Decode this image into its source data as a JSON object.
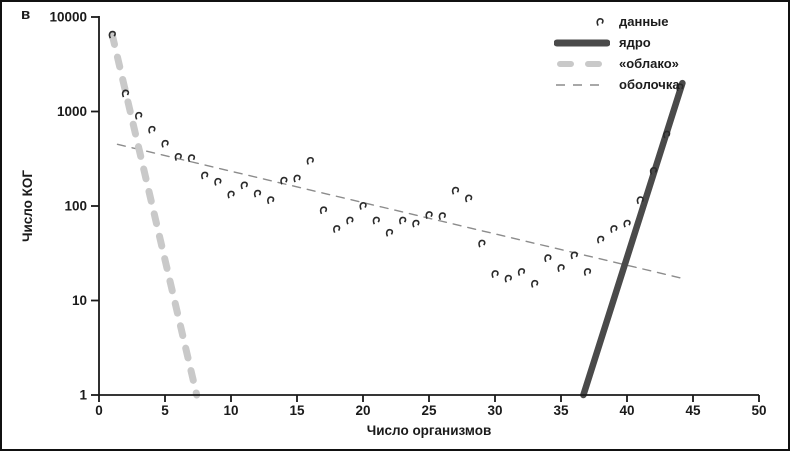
{
  "panel_label": "в",
  "chart_data": {
    "type": "scatter",
    "title": "",
    "xlabel": "Число организмов",
    "ylabel": "Число КОГ",
    "x_scale": "linear",
    "y_scale": "log",
    "xlim": [
      0,
      50
    ],
    "ylim": [
      1,
      10000
    ],
    "x_ticks": [
      0,
      5,
      10,
      15,
      20,
      25,
      30,
      35,
      40,
      45,
      50
    ],
    "y_ticks": [
      1,
      10,
      100,
      1000,
      10000
    ],
    "grid": false,
    "legend_position": "top-right",
    "axis_color": "#1a1a1a",
    "series": [
      {
        "name": "данные",
        "kind": "scatter",
        "marker": "curl",
        "color": "#2b2b2b",
        "x": [
          1,
          2,
          3,
          4,
          5,
          6,
          7,
          8,
          9,
          10,
          11,
          12,
          13,
          14,
          15,
          16,
          17,
          18,
          19,
          20,
          21,
          22,
          23,
          24,
          25,
          26,
          27,
          28,
          29,
          30,
          31,
          32,
          33,
          34,
          35,
          36,
          37,
          38,
          39,
          40,
          41,
          42,
          43,
          44
        ],
        "y": [
          6500,
          1550,
          900,
          640,
          455,
          330,
          320,
          210,
          180,
          132,
          165,
          135,
          115,
          185,
          195,
          300,
          90,
          57,
          70,
          100,
          70,
          52,
          70,
          65,
          80,
          78,
          145,
          120,
          40,
          19,
          17,
          20,
          15,
          28,
          22,
          30,
          20,
          44,
          57,
          65,
          115,
          235,
          570,
          1800
        ]
      },
      {
        "name": "ядро",
        "kind": "line",
        "style": "solid",
        "width": 6.5,
        "color": "#4a4a4a",
        "points": [
          [
            36.7,
            1
          ],
          [
            44.2,
            2000
          ]
        ]
      },
      {
        "name": "«облако»",
        "kind": "line",
        "style": "dashed-thick",
        "width": 7,
        "color": "#c9c9c9",
        "points": [
          [
            1.0,
            6500
          ],
          [
            7.4,
            1
          ]
        ]
      },
      {
        "name": "оболочка",
        "kind": "line",
        "style": "dashed-thin",
        "width": 1.4,
        "color": "#8c8c8c",
        "points": [
          [
            1.4,
            450
          ],
          [
            44.3,
            17
          ]
        ]
      }
    ]
  }
}
